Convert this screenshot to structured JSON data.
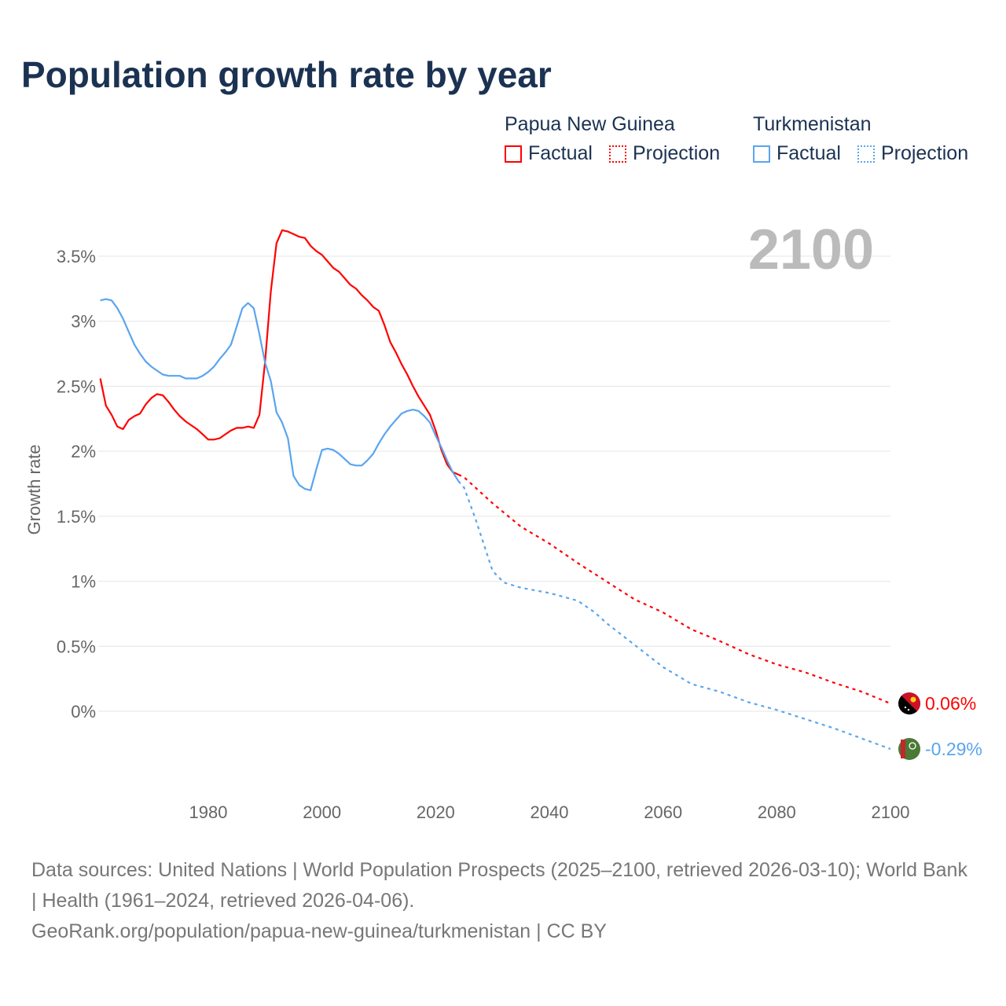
{
  "title": "Population growth rate by year",
  "legend": [
    {
      "country": "Papua New Guinea",
      "color": "#ff0000",
      "factual": "Factual",
      "projection": "Projection"
    },
    {
      "country": "Turkmenistan",
      "color": "#5aa5ee",
      "factual": "Factual",
      "projection": "Projection"
    }
  ],
  "footer": {
    "sources": "Data sources: United Nations | World Population Prospects (2025–2100, retrieved 2026-03-10); World Bank | Health (1961–2024, retrieved 2026-04-06).",
    "link": "GeoRank.org/population/papua-new-guinea/turkmenistan | CC BY"
  },
  "chart_data": {
    "type": "line",
    "title": "Population growth rate by year",
    "ylabel": "Growth rate",
    "xlabel": "",
    "current_year_label": "2100",
    "xlim": [
      1961,
      2100
    ],
    "ylim": [
      -0.6,
      3.8
    ],
    "x_ticks": [
      1980,
      2000,
      2020,
      2040,
      2060,
      2080,
      2100
    ],
    "y_ticks": [
      0,
      0.5,
      1,
      1.5,
      2,
      2.5,
      3,
      3.5
    ],
    "y_tick_labels": [
      "0%",
      "0.5%",
      "1%",
      "1.5%",
      "2%",
      "2.5%",
      "3%",
      "3.5%"
    ],
    "grid": true,
    "series": [
      {
        "name": "Papua New Guinea",
        "color": "#ff0000",
        "end_label": "0.06%",
        "factual": {
          "x": [
            1961,
            1962,
            1963,
            1964,
            1965,
            1966,
            1967,
            1968,
            1969,
            1970,
            1971,
            1972,
            1973,
            1974,
            1975,
            1976,
            1977,
            1978,
            1979,
            1980,
            1981,
            1982,
            1983,
            1984,
            1985,
            1986,
            1987,
            1988,
            1989,
            1990,
            1991,
            1992,
            1993,
            1994,
            1995,
            1996,
            1997,
            1998,
            1999,
            2000,
            2001,
            2002,
            2003,
            2004,
            2005,
            2006,
            2007,
            2008,
            2009,
            2010,
            2011,
            2012,
            2013,
            2014,
            2015,
            2016,
            2017,
            2018,
            2019,
            2020,
            2021,
            2022,
            2023,
            2024
          ],
          "y": [
            2.56,
            2.35,
            2.28,
            2.19,
            2.17,
            2.24,
            2.27,
            2.29,
            2.36,
            2.41,
            2.44,
            2.43,
            2.38,
            2.32,
            2.27,
            2.23,
            2.2,
            2.17,
            2.13,
            2.09,
            2.09,
            2.1,
            2.13,
            2.16,
            2.18,
            2.18,
            2.19,
            2.18,
            2.28,
            2.69,
            3.23,
            3.6,
            3.7,
            3.69,
            3.67,
            3.65,
            3.64,
            3.58,
            3.54,
            3.51,
            3.46,
            3.41,
            3.38,
            3.33,
            3.28,
            3.25,
            3.2,
            3.16,
            3.11,
            3.08,
            2.97,
            2.84,
            2.76,
            2.67,
            2.59,
            2.5,
            2.42,
            2.35,
            2.28,
            2.16,
            2.01,
            1.9,
            1.84,
            1.82
          ]
        },
        "projection": {
          "x": [
            2024,
            2025,
            2030,
            2035,
            2040,
            2045,
            2050,
            2055,
            2060,
            2065,
            2070,
            2075,
            2080,
            2085,
            2090,
            2095,
            2100
          ],
          "y": [
            1.82,
            1.8,
            1.6,
            1.42,
            1.29,
            1.14,
            1.0,
            0.86,
            0.76,
            0.63,
            0.54,
            0.44,
            0.36,
            0.3,
            0.22,
            0.15,
            0.06
          ]
        }
      },
      {
        "name": "Turkmenistan",
        "color": "#5aa5ee",
        "end_label": "-0.29%",
        "factual": {
          "x": [
            1961,
            1962,
            1963,
            1964,
            1965,
            1966,
            1967,
            1968,
            1969,
            1970,
            1971,
            1972,
            1973,
            1974,
            1975,
            1976,
            1977,
            1978,
            1979,
            1980,
            1981,
            1982,
            1983,
            1984,
            1985,
            1986,
            1987,
            1988,
            1989,
            1990,
            1991,
            1992,
            1993,
            1994,
            1995,
            1996,
            1997,
            1998,
            1999,
            2000,
            2001,
            2002,
            2003,
            2004,
            2005,
            2006,
            2007,
            2008,
            2009,
            2010,
            2011,
            2012,
            2013,
            2014,
            2015,
            2016,
            2017,
            2018,
            2019,
            2020,
            2021,
            2022,
            2023,
            2024
          ],
          "y": [
            3.16,
            3.17,
            3.16,
            3.1,
            3.02,
            2.92,
            2.82,
            2.75,
            2.69,
            2.65,
            2.62,
            2.59,
            2.58,
            2.58,
            2.58,
            2.56,
            2.56,
            2.56,
            2.58,
            2.61,
            2.65,
            2.71,
            2.76,
            2.82,
            2.96,
            3.1,
            3.14,
            3.1,
            2.9,
            2.68,
            2.54,
            2.3,
            2.22,
            2.1,
            1.81,
            1.74,
            1.71,
            1.7,
            1.86,
            2.01,
            2.02,
            2.01,
            1.98,
            1.94,
            1.9,
            1.89,
            1.89,
            1.93,
            1.98,
            2.06,
            2.13,
            2.19,
            2.24,
            2.29,
            2.31,
            2.32,
            2.31,
            2.27,
            2.22,
            2.12,
            2.03,
            1.93,
            1.84,
            1.77
          ]
        },
        "projection": {
          "x": [
            2024,
            2025,
            2027,
            2030,
            2032,
            2035,
            2040,
            2045,
            2048,
            2050,
            2055,
            2060,
            2065,
            2070,
            2075,
            2080,
            2085,
            2090,
            2095,
            2100
          ],
          "y": [
            1.77,
            1.72,
            1.48,
            1.08,
            0.99,
            0.95,
            0.91,
            0.85,
            0.76,
            0.68,
            0.51,
            0.34,
            0.21,
            0.15,
            0.07,
            0.01,
            -0.06,
            -0.13,
            -0.21,
            -0.29
          ]
        }
      }
    ]
  }
}
